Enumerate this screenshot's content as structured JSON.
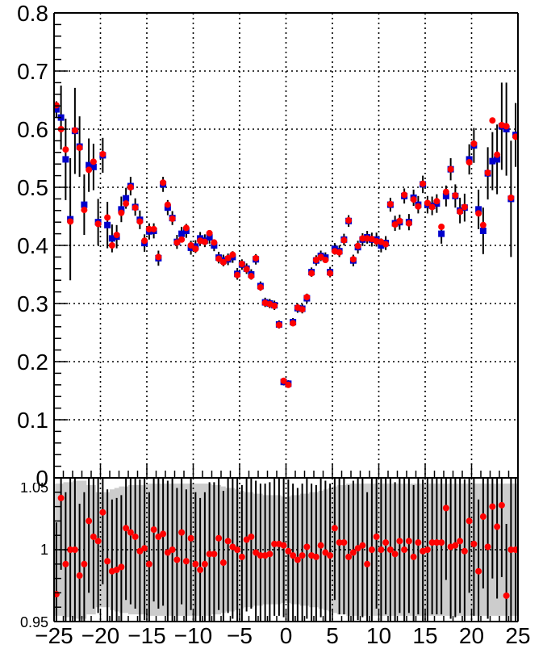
{
  "chart_data": [
    {
      "type": "scatter",
      "title": "",
      "xlabel": "",
      "ylabel": "",
      "xlim": [
        -25,
        25
      ],
      "ylim": [
        0,
        0.8
      ],
      "grid": true,
      "legend": "none",
      "x": [
        -24.75,
        -24.25,
        -23.75,
        -23.25,
        -22.75,
        -22.25,
        -21.75,
        -21.25,
        -20.75,
        -20.25,
        -19.75,
        -19.25,
        -18.75,
        -18.25,
        -17.75,
        -17.25,
        -16.75,
        -16.25,
        -15.75,
        -15.25,
        -14.75,
        -14.25,
        -13.75,
        -13.25,
        -12.75,
        -12.25,
        -11.75,
        -11.25,
        -10.75,
        -10.25,
        -9.75,
        -9.25,
        -8.75,
        -8.25,
        -7.75,
        -7.25,
        -6.75,
        -6.25,
        -5.75,
        -5.25,
        -4.75,
        -4.25,
        -3.75,
        -3.25,
        -2.75,
        -2.25,
        -1.75,
        -1.25,
        -0.75,
        -0.25,
        0.25,
        0.75,
        1.25,
        1.75,
        2.25,
        2.75,
        3.25,
        3.75,
        4.25,
        4.75,
        5.25,
        5.75,
        6.25,
        6.75,
        7.25,
        7.75,
        8.25,
        8.75,
        9.25,
        9.75,
        10.25,
        10.75,
        11.25,
        11.75,
        12.25,
        12.75,
        13.25,
        13.75,
        14.25,
        14.75,
        15.25,
        15.75,
        16.25,
        16.75,
        17.25,
        17.75,
        18.25,
        18.75,
        19.25,
        19.75,
        20.25,
        20.75,
        21.25,
        21.75,
        22.25,
        22.75,
        23.25,
        23.75,
        24.25,
        24.75
      ],
      "series": [
        {
          "marker": "square",
          "color": "#0000cc",
          "values": [
            0.634,
            0.62,
            0.548,
            0.445,
            0.597,
            0.57,
            0.47,
            0.538,
            0.535,
            0.44,
            0.555,
            0.435,
            0.412,
            0.415,
            0.462,
            0.481,
            0.502,
            0.466,
            0.444,
            0.404,
            0.424,
            0.425,
            0.378,
            0.505,
            0.465,
            0.447,
            0.406,
            0.42,
            0.425,
            0.396,
            0.398,
            0.412,
            0.408,
            0.414,
            0.4,
            0.379,
            0.374,
            0.376,
            0.38,
            0.351,
            0.367,
            0.36,
            0.35,
            0.376,
            0.33,
            0.302,
            0.3,
            0.297,
            0.264,
            0.165,
            0.162,
            0.268,
            0.292,
            0.291,
            0.309,
            0.354,
            0.374,
            0.382,
            0.379,
            0.354,
            0.394,
            0.39,
            0.41,
            0.442,
            0.374,
            0.397,
            0.41,
            0.414,
            0.41,
            0.41,
            0.4,
            0.404,
            0.47,
            0.438,
            0.44,
            0.485,
            0.44,
            0.482,
            0.47,
            0.505,
            0.47,
            0.468,
            0.472,
            0.42,
            0.485,
            0.531,
            0.485,
            0.46,
            0.465,
            0.548,
            0.572,
            0.462,
            0.425,
            0.524,
            0.545,
            0.548,
            0.605,
            0.6,
            0.48,
            0.59
          ]
        },
        {
          "marker": "circle",
          "color": "#ff0000",
          "values": [
            0.641,
            0.6,
            0.565,
            0.441,
            0.598,
            0.568,
            0.461,
            0.53,
            0.544,
            0.437,
            0.557,
            0.448,
            0.4,
            0.418,
            0.456,
            0.472,
            0.5,
            0.465,
            0.441,
            0.408,
            0.428,
            0.428,
            0.38,
            0.508,
            0.47,
            0.446,
            0.405,
            0.41,
            0.43,
            0.4,
            0.394,
            0.408,
            0.406,
            0.421,
            0.405,
            0.377,
            0.371,
            0.378,
            0.384,
            0.349,
            0.368,
            0.359,
            0.347,
            0.378,
            0.328,
            0.301,
            0.299,
            0.296,
            0.263,
            0.167,
            0.16,
            0.266,
            0.293,
            0.29,
            0.311,
            0.352,
            0.375,
            0.38,
            0.375,
            0.352,
            0.39,
            0.388,
            0.409,
            0.443,
            0.376,
            0.399,
            0.412,
            0.412,
            0.411,
            0.407,
            0.406,
            0.402,
            0.471,
            0.436,
            0.442,
            0.487,
            0.438,
            0.479,
            0.467,
            0.506,
            0.473,
            0.466,
            0.476,
            0.432,
            0.492,
            0.531,
            0.486,
            0.458,
            0.466,
            0.543,
            0.575,
            0.455,
            0.435,
            0.525,
            0.615,
            0.556,
            0.607,
            0.605,
            0.482,
            0.587
          ]
        }
      ],
      "errors": [
        0.014,
        0.055,
        0.07,
        0.105,
        0.074,
        0.052,
        0.052,
        0.046,
        0.04,
        0.04,
        0.03,
        0.04,
        0.024,
        0.02,
        0.022,
        0.018,
        0.016,
        0.015,
        0.016,
        0.015,
        0.014,
        0.013,
        0.013,
        0.013,
        0.013,
        0.012,
        0.012,
        0.012,
        0.012,
        0.012,
        0.011,
        0.011,
        0.011,
        0.011,
        0.01,
        0.01,
        0.01,
        0.01,
        0.01,
        0.01,
        0.009,
        0.009,
        0.009,
        0.009,
        0.008,
        0.008,
        0.008,
        0.008,
        0.007,
        0.006,
        0.006,
        0.007,
        0.008,
        0.008,
        0.008,
        0.008,
        0.009,
        0.009,
        0.009,
        0.009,
        0.01,
        0.01,
        0.01,
        0.01,
        0.01,
        0.011,
        0.011,
        0.011,
        0.012,
        0.012,
        0.012,
        0.012,
        0.012,
        0.013,
        0.013,
        0.013,
        0.014,
        0.014,
        0.015,
        0.015,
        0.015,
        0.016,
        0.016,
        0.017,
        0.018,
        0.019,
        0.02,
        0.022,
        0.024,
        0.026,
        0.03,
        0.034,
        0.04,
        0.045,
        0.05,
        0.06,
        0.075,
        0.08,
        0.1,
        0.055
      ],
      "xticks": [
        "−25",
        "−20",
        "−15",
        "−10",
        "−5",
        "0",
        "5",
        "10",
        "15",
        "20",
        "25"
      ],
      "yticks": [
        "0",
        "0.1",
        "0.2",
        "0.3",
        "0.4",
        "0.5",
        "0.6",
        "0.7",
        "0.8"
      ]
    },
    {
      "type": "scatter",
      "title": "",
      "xlabel": "",
      "ylabel": "",
      "xlim": [
        -25,
        25
      ],
      "ylim": [
        0.95,
        1.05
      ],
      "grid": true,
      "legend": "none",
      "band_color": "#cccccc",
      "ratio_values": [
        0.969,
        1.036,
        0.99,
        1.0,
        1.0,
        0.982,
        0.99,
        1.02,
        1.009,
        1.006,
        1.026,
        0.992,
        0.985,
        0.986,
        0.988,
        1.015,
        1.012,
        1.009,
        0.999,
        1.001,
        0.99,
        1.014,
        1.009,
        1.011,
        0.998,
        1.0,
        0.993,
        1.012,
        0.992,
        1.008,
        0.99,
        0.986,
        0.99,
        0.997,
        0.997,
        1.008,
        0.991,
        1.006,
        1.002,
        1.0,
        0.995,
        1.007,
        1.009,
        0.998,
        0.996,
        0.996,
        0.997,
        1.004,
        1.004,
        1.003,
        0.999,
        0.996,
        0.993,
        0.996,
        1.002,
        0.996,
        0.995,
        1.003,
        0.998,
        0.996,
        1.015,
        1.005,
        1.005,
        0.995,
        0.998,
        1.001,
        1.003,
        0.99,
        1.0,
        1.009,
        1.0,
        1.005,
        1.0,
        0.997,
        1.006,
        1.0,
        1.006,
        0.995,
        1.005,
        0.999,
        1.0,
        1.005,
        1.005,
        1.005,
        1.029,
        1.002,
        1.003,
        1.006,
        0.999,
        1.02,
        1.004,
        0.985,
        1.023,
        1.002,
        1.03,
        1.016,
        1.031,
        0.968,
        1.0,
        1.0
      ],
      "ratio_errors": [
        0.05,
        0.05,
        0.05,
        0.05,
        0.05,
        0.05,
        0.05,
        0.05,
        0.05,
        0.05,
        0.05,
        0.05,
        0.05,
        0.05,
        0.05,
        0.05,
        0.05,
        0.05,
        0.05,
        0.05,
        0.05,
        0.05,
        0.05,
        0.05,
        0.05,
        0.05,
        0.05,
        0.05,
        0.05,
        0.05,
        0.05,
        0.05,
        0.05,
        0.05,
        0.05,
        0.05,
        0.05,
        0.05,
        0.05,
        0.05,
        0.05,
        0.05,
        0.05,
        0.05,
        0.05,
        0.05,
        0.05,
        0.05,
        0.05,
        0.05,
        0.05,
        0.05,
        0.05,
        0.05,
        0.05,
        0.05,
        0.05,
        0.05,
        0.05,
        0.05,
        0.05,
        0.05,
        0.05,
        0.05,
        0.05,
        0.05,
        0.05,
        0.05,
        0.05,
        0.05,
        0.05,
        0.05,
        0.05,
        0.05,
        0.05,
        0.05,
        0.05,
        0.05,
        0.05,
        0.05,
        0.05,
        0.05,
        0.05,
        0.05,
        0.05,
        0.05,
        0.05,
        0.05,
        0.05,
        0.05,
        0.05,
        0.05,
        0.05,
        0.05,
        0.05,
        0.05,
        0.05,
        0.05,
        0.05,
        0.05
      ],
      "band_upper": [
        1.046,
        1.046,
        1.047,
        1.047,
        1.048,
        1.048,
        1.048,
        1.045,
        1.045,
        1.04,
        1.04,
        1.04,
        1.042,
        1.043,
        1.044,
        1.044,
        1.045,
        1.045,
        1.045,
        1.045,
        1.046,
        1.046,
        1.046,
        1.046,
        1.046,
        1.046,
        1.046,
        1.046,
        1.046,
        1.046,
        1.046,
        1.046,
        1.046,
        1.046,
        1.045,
        1.045,
        1.044,
        1.043,
        1.043,
        1.042,
        1.041,
        1.04,
        1.04,
        1.039,
        1.039,
        1.038,
        1.038,
        1.038,
        1.038,
        1.037,
        1.037,
        1.038,
        1.038,
        1.039,
        1.039,
        1.04,
        1.04,
        1.041,
        1.042,
        1.043,
        1.044,
        1.045,
        1.045,
        1.046,
        1.046,
        1.046,
        1.046,
        1.046,
        1.046,
        1.046,
        1.046,
        1.046,
        1.046,
        1.046,
        1.046,
        1.046,
        1.046,
        1.046,
        1.046,
        1.046,
        1.046,
        1.046,
        1.046,
        1.046,
        1.046,
        1.046,
        1.046,
        1.046,
        1.046,
        1.046,
        1.046,
        1.046,
        1.046,
        1.046,
        1.046,
        1.046,
        1.046,
        1.046,
        1.046,
        1.046
      ],
      "band_lower": [
        0.954,
        0.954,
        0.953,
        0.953,
        0.952,
        0.952,
        0.952,
        0.955,
        0.955,
        0.96,
        0.96,
        0.96,
        0.958,
        0.957,
        0.956,
        0.956,
        0.955,
        0.955,
        0.955,
        0.955,
        0.954,
        0.954,
        0.954,
        0.954,
        0.954,
        0.954,
        0.954,
        0.954,
        0.954,
        0.954,
        0.954,
        0.954,
        0.954,
        0.954,
        0.955,
        0.955,
        0.956,
        0.957,
        0.957,
        0.958,
        0.959,
        0.96,
        0.96,
        0.961,
        0.961,
        0.962,
        0.962,
        0.962,
        0.962,
        0.963,
        0.963,
        0.962,
        0.962,
        0.961,
        0.961,
        0.96,
        0.96,
        0.959,
        0.958,
        0.957,
        0.956,
        0.955,
        0.955,
        0.954,
        0.954,
        0.954,
        0.954,
        0.954,
        0.954,
        0.954,
        0.954,
        0.954,
        0.954,
        0.954,
        0.954,
        0.954,
        0.954,
        0.954,
        0.954,
        0.954,
        0.954,
        0.954,
        0.954,
        0.954,
        0.954,
        0.954,
        0.954,
        0.954,
        0.954,
        0.954,
        0.954,
        0.954,
        0.954,
        0.954,
        0.954,
        0.954,
        0.954,
        0.954,
        0.954,
        0.954
      ],
      "xticks": [
        "−25",
        "−20",
        "−15",
        "−10",
        "−5",
        "0",
        "5",
        "10",
        "15",
        "20",
        "25"
      ],
      "yticks": [
        "0.95",
        "1",
        "1.05"
      ],
      "ytick_display": [
        "0.95",
        "1",
        ""
      ],
      "ytick_partial_label": "1.05"
    }
  ]
}
